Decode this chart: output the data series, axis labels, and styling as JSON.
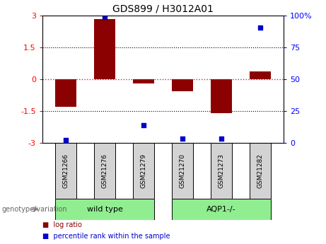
{
  "title": "GDS899 / H3012A01",
  "samples": [
    "GSM21266",
    "GSM21276",
    "GSM21279",
    "GSM21270",
    "GSM21273",
    "GSM21282"
  ],
  "log_ratio": [
    -1.3,
    2.85,
    -0.2,
    -0.55,
    -1.6,
    0.38
  ],
  "percentile_rank": [
    2,
    99,
    14,
    3,
    3,
    91
  ],
  "bar_color": "#8B0000",
  "dot_color": "#0000CD",
  "ylim_left": [
    -3,
    3
  ],
  "ylim_right": [
    0,
    100
  ],
  "left_ticks": [
    -3,
    -1.5,
    0,
    1.5,
    3
  ],
  "right_ticks": [
    0,
    25,
    50,
    75,
    100
  ],
  "hline_color": "#DC143C",
  "dotted_lines": [
    -1.5,
    0,
    1.5
  ],
  "group_label_text": "genotype/variation",
  "legend_items": [
    {
      "label": "log ratio",
      "color": "#8B0000"
    },
    {
      "label": "percentile rank within the sample",
      "color": "#0000CD"
    }
  ],
  "sample_box_color": "#D3D3D3",
  "group_color": "#90EE90",
  "groups": [
    {
      "label": "wild type",
      "start": 0,
      "end": 2
    },
    {
      "label": "AQP1-/-",
      "start": 3,
      "end": 5
    }
  ],
  "bar_width": 0.55
}
